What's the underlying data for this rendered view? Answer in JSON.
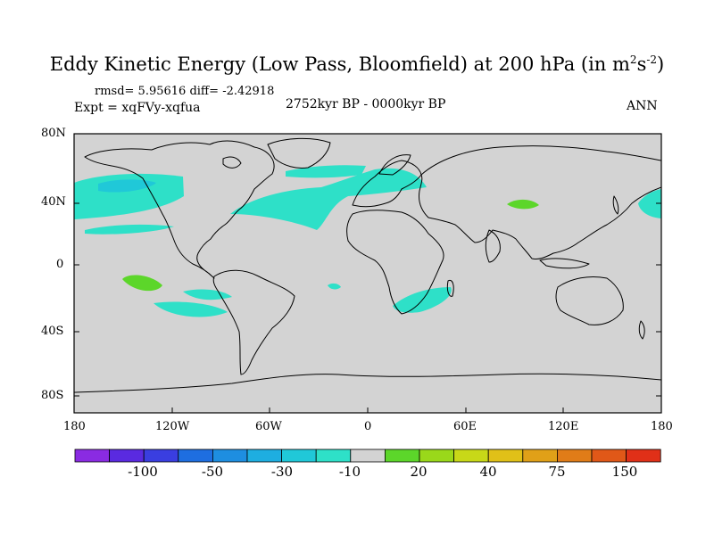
{
  "title": {
    "main": "Eddy Kinetic Energy (Low Pass, Bloomfield) at 200 hPa (in m",
    "sup1": "2",
    "unit_s": "s",
    "sup2": "-2",
    "close": ")"
  },
  "stats": "rmsd= 5.95616 diff= -2.42918",
  "experiment": "Expt = xqFVy-xqfua",
  "period": "2752kyr BP - 0000kyr BP",
  "season": "ANN",
  "axes": {
    "y_ticks": [
      "80N",
      "40N",
      "0",
      "40S",
      "80S"
    ],
    "x_ticks": [
      "180",
      "120W",
      "60W",
      "0",
      "60E",
      "120E",
      "180"
    ]
  },
  "colors": {
    "ocean": "#d3d3d3",
    "coast": "#000000",
    "anom_neg_weak": "#2ee0c8",
    "anom_neg_mid": "#1ec8d8",
    "anom_pos_weak": "#5cd62a"
  },
  "colorbar": {
    "colors": [
      "#8a2be2",
      "#5a2ae0",
      "#3a3ee0",
      "#1e6ee0",
      "#1e8ee0",
      "#1eaee0",
      "#20c8d8",
      "#2ee0c8",
      "#d3d3d3",
      "#5cd62a",
      "#9ad81a",
      "#c8d818",
      "#e0c018",
      "#e0a018",
      "#e07c18",
      "#e05818",
      "#e03018"
    ],
    "labels": [
      "-100",
      "-50",
      "-30",
      "-10",
      "20",
      "40",
      "75",
      "150"
    ]
  }
}
